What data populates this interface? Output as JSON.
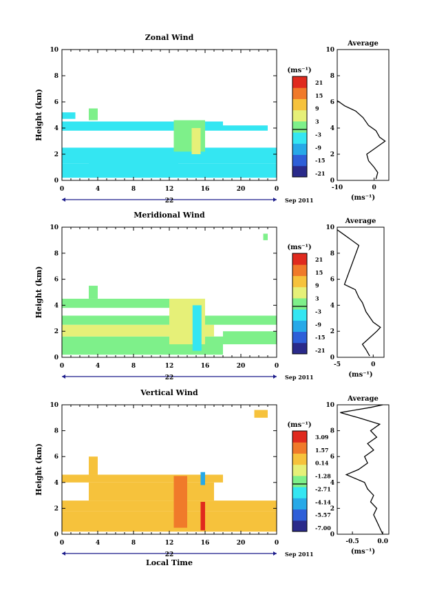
{
  "chart_data": [
    {
      "type": "heatmap",
      "title": "Zonal Wind",
      "xlabel": "",
      "ylabel": "Height (km)",
      "x_ticks": [
        "0",
        "4",
        "8",
        "12",
        "16",
        "20",
        "0"
      ],
      "y_ticks": [
        "0",
        "2",
        "4",
        "6",
        "8",
        "10"
      ],
      "xlim_hours": [
        0,
        24
      ],
      "ylim_km": [
        0,
        10
      ],
      "date_label": "22",
      "date_suffix": "Sep 2011",
      "colorbar": {
        "unit": "(ms⁻¹)",
        "labels": [
          "21",
          "15",
          "9",
          "3",
          "-3",
          "-9",
          "-15",
          "-21"
        ],
        "range": [
          -24,
          24
        ]
      },
      "cells": [
        {
          "t0": 0,
          "t1": 24,
          "h0": 0.2,
          "h1": 1.3,
          "v": -3.5
        },
        {
          "t0": 0,
          "t1": 24,
          "h0": 1.3,
          "h1": 2.0,
          "v": -4
        },
        {
          "t0": 3,
          "t1": 13,
          "h0": 1.2,
          "h1": 2.3,
          "v": -6
        },
        {
          "t0": 0,
          "t1": 24,
          "h0": 2.0,
          "h1": 2.5,
          "v": -3
        },
        {
          "t0": 0,
          "t1": 18,
          "h0": 3.8,
          "h1": 4.5,
          "v": -3
        },
        {
          "t0": 18,
          "t1": 23,
          "h0": 3.8,
          "h1": 4.2,
          "v": -3
        },
        {
          "t0": 12.5,
          "t1": 16,
          "h0": 2.2,
          "h1": 4.6,
          "v": 1
        },
        {
          "t0": 14.5,
          "t1": 15.5,
          "h0": 2.0,
          "h1": 4.0,
          "v": 3
        },
        {
          "t0": 0,
          "t1": 1.5,
          "h0": 4.7,
          "h1": 5.2,
          "v": -3
        },
        {
          "t0": 3,
          "t1": 4,
          "h0": 4.6,
          "h1": 5.5,
          "v": -2
        }
      ],
      "profile": {
        "title": "Average",
        "xlabel": "(ms⁻¹)",
        "x_ticks": [
          "-10",
          "0"
        ],
        "xlim": [
          -10,
          4
        ],
        "y_ticks": [
          "0",
          "2",
          "4",
          "6",
          "8",
          "10"
        ],
        "ylim": [
          0,
          10
        ],
        "points": [
          [
            0.5,
            0.1
          ],
          [
            1.0,
            0.6
          ],
          [
            0.0,
            1.0
          ],
          [
            -1.5,
            1.5
          ],
          [
            -2.0,
            2.0
          ],
          [
            0.5,
            2.5
          ],
          [
            3.0,
            3.0
          ],
          [
            1.5,
            3.3
          ],
          [
            0.5,
            3.8
          ],
          [
            -1.5,
            4.2
          ],
          [
            -3.0,
            4.8
          ],
          [
            -5.0,
            5.3
          ],
          [
            -8.0,
            5.7
          ],
          [
            -10.0,
            6.1
          ]
        ]
      }
    },
    {
      "type": "heatmap",
      "title": "Meridional Wind",
      "xlabel": "",
      "ylabel": "Height (km)",
      "x_ticks": [
        "0",
        "4",
        "8",
        "12",
        "16",
        "20",
        "0"
      ],
      "y_ticks": [
        "0",
        "2",
        "4",
        "6",
        "8",
        "10"
      ],
      "xlim_hours": [
        0,
        24
      ],
      "ylim_km": [
        0,
        10
      ],
      "date_label": "22",
      "date_suffix": "Sep 2011",
      "colorbar": {
        "unit": "(ms⁻¹)",
        "labels": [
          "21",
          "15",
          "9",
          "3",
          "-3",
          "-9",
          "-15",
          "-21"
        ],
        "range": [
          -24,
          24
        ]
      },
      "cells": [
        {
          "t0": 0,
          "t1": 18,
          "h0": 0.2,
          "h1": 1.6,
          "v": 2
        },
        {
          "t0": 18,
          "t1": 24,
          "h0": 1.0,
          "h1": 2.0,
          "v": 1
        },
        {
          "t0": 0,
          "t1": 17,
          "h0": 1.6,
          "h1": 2.5,
          "v": 3
        },
        {
          "t0": 0,
          "t1": 24,
          "h0": 2.5,
          "h1": 3.2,
          "v": -1
        },
        {
          "t0": 0,
          "t1": 16,
          "h0": 3.8,
          "h1": 4.5,
          "v": -1
        },
        {
          "t0": 12,
          "t1": 16,
          "h0": 1.0,
          "h1": 4.5,
          "v": 4
        },
        {
          "t0": 14.6,
          "t1": 15.6,
          "h0": 0.5,
          "h1": 4.0,
          "v": -3
        },
        {
          "t0": 3,
          "t1": 4,
          "h0": 4.5,
          "h1": 5.5,
          "v": -1
        },
        {
          "t0": 22.5,
          "t1": 23,
          "h0": 9.0,
          "h1": 9.5,
          "v": -2
        }
      ],
      "profile": {
        "title": "Average",
        "xlabel": "(ms⁻¹)",
        "x_ticks": [
          "-5",
          "0"
        ],
        "xlim": [
          -5,
          1.5
        ],
        "y_ticks": [
          "0",
          "2",
          "4",
          "6",
          "8",
          "10"
        ],
        "ylim": [
          0,
          10
        ],
        "points": [
          [
            -0.5,
            0.1
          ],
          [
            -1.0,
            0.6
          ],
          [
            -1.5,
            1.0
          ],
          [
            -0.5,
            1.5
          ],
          [
            0.5,
            2.0
          ],
          [
            1.0,
            2.3
          ],
          [
            0.0,
            2.7
          ],
          [
            -1.0,
            3.5
          ],
          [
            -1.5,
            4.2
          ],
          [
            -2.0,
            4.6
          ],
          [
            -2.5,
            5.2
          ],
          [
            -4.0,
            5.6
          ],
          [
            -2.0,
            8.6
          ],
          [
            -4.0,
            9.4
          ],
          [
            -5.0,
            9.8
          ]
        ]
      }
    },
    {
      "type": "heatmap",
      "title": "Vertical Wind",
      "xlabel": "Local Time",
      "ylabel": "Height (km)",
      "x_ticks": [
        "0",
        "4",
        "8",
        "12",
        "16",
        "20",
        "0"
      ],
      "y_ticks": [
        "0",
        "2",
        "4",
        "6",
        "8",
        "10"
      ],
      "xlim_hours": [
        0,
        24
      ],
      "ylim_km": [
        0,
        10
      ],
      "date_label": "22",
      "date_suffix": "Sep 2011",
      "colorbar": {
        "unit": "(ms⁻¹)",
        "labels": [
          "3.09",
          "1.57",
          "0.14",
          "-1.28",
          "-2.71",
          "-4.14",
          "-5.57",
          "-7.00"
        ],
        "range": [
          -7.7,
          3.8
        ]
      },
      "cells": [
        {
          "t0": 0,
          "t1": 24,
          "h0": 0.2,
          "h1": 1.8,
          "v": 0.8
        },
        {
          "t0": 0,
          "t1": 24,
          "h0": 1.8,
          "h1": 2.6,
          "v": 0.4
        },
        {
          "t0": 3,
          "t1": 17,
          "h0": 2.6,
          "h1": 4.0,
          "v": 0.2
        },
        {
          "t0": 0,
          "t1": 18,
          "h0": 4.0,
          "h1": 4.6,
          "v": 0.3
        },
        {
          "t0": 12.5,
          "t1": 14,
          "h0": 0.5,
          "h1": 4.5,
          "v": 1.5
        },
        {
          "t0": 15.5,
          "t1": 16,
          "h0": 0.3,
          "h1": 2.5,
          "v": 2.8
        },
        {
          "t0": 15.5,
          "t1": 16,
          "h0": 3.8,
          "h1": 4.8,
          "v": -4.5
        },
        {
          "t0": 3,
          "t1": 4,
          "h0": 4.6,
          "h1": 6.0,
          "v": 0.0
        },
        {
          "t0": 21.5,
          "t1": 23,
          "h0": 9.0,
          "h1": 9.6,
          "v": 0.1
        }
      ],
      "profile": {
        "title": "Average",
        "xlabel": "(ms⁻¹)",
        "x_ticks": [
          "-0.5",
          "0.0"
        ],
        "xlim": [
          -0.75,
          0.1
        ],
        "y_ticks": [
          "0",
          "2",
          "4",
          "6",
          "8",
          "10"
        ],
        "ylim": [
          0,
          10
        ],
        "points": [
          [
            0.0,
            0.0
          ],
          [
            -0.05,
            0.5
          ],
          [
            -0.1,
            1.0
          ],
          [
            -0.15,
            1.5
          ],
          [
            -0.1,
            2.0
          ],
          [
            -0.2,
            2.5
          ],
          [
            -0.15,
            3.0
          ],
          [
            -0.25,
            3.5
          ],
          [
            -0.3,
            4.0
          ],
          [
            -0.6,
            4.6
          ],
          [
            -0.4,
            5.0
          ],
          [
            -0.25,
            5.5
          ],
          [
            -0.3,
            6.0
          ],
          [
            -0.15,
            6.5
          ],
          [
            -0.25,
            7.0
          ],
          [
            -0.1,
            7.5
          ],
          [
            -0.2,
            8.0
          ],
          [
            -0.05,
            8.5
          ],
          [
            -0.4,
            9.0
          ],
          [
            -0.7,
            9.4
          ],
          [
            -0.2,
            9.8
          ],
          [
            0.0,
            10.0
          ]
        ]
      }
    }
  ]
}
